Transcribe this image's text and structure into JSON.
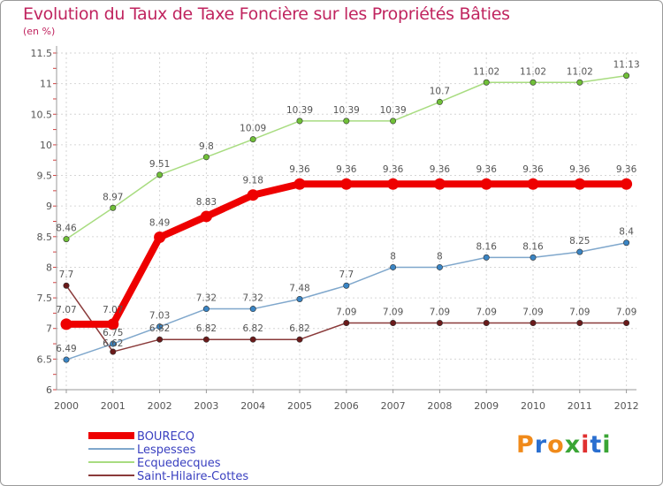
{
  "title": "Evolution du Taux de Taxe Foncière sur les Propriétés Bâties",
  "unit_label": "(en %)",
  "logo": {
    "letters": [
      "P",
      "r",
      "o",
      "x",
      "i",
      "t",
      "i"
    ],
    "colors": [
      "#f08a1a",
      "#2a6fd0",
      "#f08a1a",
      "#3aa535",
      "#e03030",
      "#2a6fd0",
      "#3aa535"
    ]
  },
  "chart_data": {
    "type": "line",
    "title": "Evolution du Taux de Taxe Foncière sur les Propriétés Bâties",
    "ylabel": "(en %)",
    "xlabel": "",
    "x": [
      "2000",
      "2001",
      "2002",
      "2003",
      "2004",
      "2005",
      "2006",
      "2007",
      "2008",
      "2009",
      "2010",
      "2011",
      "2012"
    ],
    "ylim": [
      6,
      11.5
    ],
    "yticks": [
      "6",
      "6.5",
      "7",
      "7.5",
      "8",
      "8.5",
      "9",
      "9.5",
      "10",
      "10.5",
      "11",
      "11.5"
    ],
    "grid": true,
    "legend": "bottom-left",
    "series": [
      {
        "name": "BOURECQ",
        "color": "#ee0000",
        "marker_color": "#ee0000",
        "values": [
          7.07,
          7.07,
          8.49,
          8.83,
          9.18,
          9.36,
          9.36,
          9.36,
          9.36,
          9.36,
          9.36,
          9.36,
          9.36
        ],
        "labels": [
          "7.07",
          "7.07",
          "8.49",
          "8.83",
          "9.18",
          "9.36",
          "9.36",
          "9.36",
          "9.36",
          "9.36",
          "9.36",
          "9.36",
          "9.36"
        ]
      },
      {
        "name": "Lespesses",
        "color": "#7fa7cc",
        "marker_color": "#3a85c4",
        "values": [
          6.49,
          6.75,
          7.03,
          7.32,
          7.32,
          7.48,
          7.7,
          8,
          8,
          8.16,
          8.16,
          8.25,
          8.4
        ],
        "labels": [
          "6.49",
          "6.75",
          "7.03",
          "7.32",
          "7.32",
          "7.48",
          "7.7",
          "8",
          "8",
          "8.16",
          "8.16",
          "8.25",
          "8.4"
        ]
      },
      {
        "name": "Ecquedecques",
        "color": "#a8dc80",
        "marker_color": "#70c038",
        "values": [
          8.46,
          8.97,
          9.51,
          9.8,
          10.09,
          10.39,
          10.39,
          10.39,
          10.7,
          11.02,
          11.02,
          11.02,
          11.13
        ],
        "labels": [
          "8.46",
          "8.97",
          "9.51",
          "9.8",
          "10.09",
          "10.39",
          "10.39",
          "10.39",
          "10.7",
          "11.02",
          "11.02",
          "11.02",
          "11.13"
        ]
      },
      {
        "name": "Saint-Hilaire-Cottes",
        "color": "#8a3a3a",
        "marker_color": "#6a1a1a",
        "values": [
          7.7,
          6.62,
          6.82,
          6.82,
          6.82,
          6.82,
          7.09,
          7.09,
          7.09,
          7.09,
          7.09,
          7.09,
          7.09
        ],
        "labels": [
          "7.7",
          "6.62",
          "6.82",
          "6.82",
          "6.82",
          "6.82",
          "7.09",
          "7.09",
          "7.09",
          "7.09",
          "7.09",
          "7.09",
          "7.09"
        ]
      }
    ]
  }
}
